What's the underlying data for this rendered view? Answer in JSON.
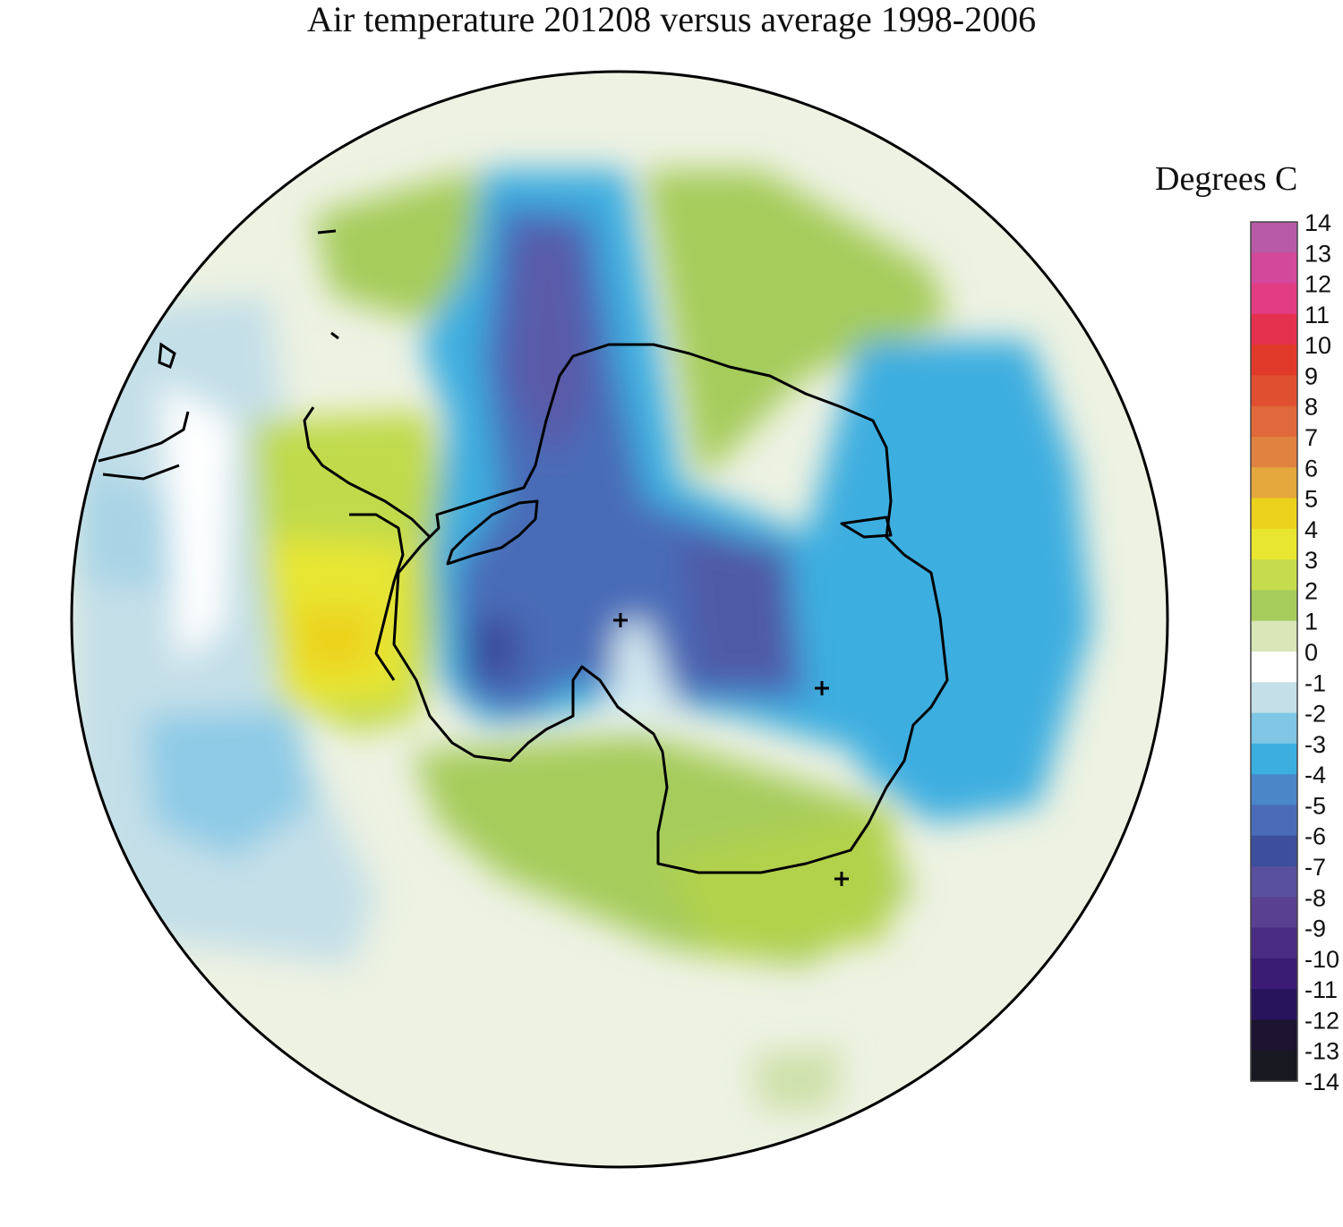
{
  "title": "Air temperature 201208 versus average 1998-2006",
  "legend": {
    "title": "Degrees C",
    "levels": [
      {
        "value": 14,
        "label": "14",
        "color": "#b85aa6"
      },
      {
        "value": 13,
        "label": "13",
        "color": "#d2489a"
      },
      {
        "value": 12,
        "label": "12",
        "color": "#e23c82"
      },
      {
        "value": 11,
        "label": "11",
        "color": "#e4304c"
      },
      {
        "value": 10,
        "label": "10",
        "color": "#e23a2a"
      },
      {
        "value": 9,
        "label": "9",
        "color": "#e05030"
      },
      {
        "value": 8,
        "label": "8",
        "color": "#e0683a"
      },
      {
        "value": 7,
        "label": "7",
        "color": "#e08240"
      },
      {
        "value": 6,
        "label": "6",
        "color": "#e4a83c"
      },
      {
        "value": 5,
        "label": "5",
        "color": "#ecd21c"
      },
      {
        "value": 4,
        "label": "4",
        "color": "#e8e630"
      },
      {
        "value": 3,
        "label": "3",
        "color": "#c6dc4c"
      },
      {
        "value": 2,
        "label": "2",
        "color": "#a6cc5c"
      },
      {
        "value": 1,
        "label": "1",
        "color": "#d8e6b8"
      },
      {
        "value": 0,
        "label": "0",
        "color": "#ffffff"
      },
      {
        "value": -1,
        "label": "-1",
        "color": "#c4dfe8"
      },
      {
        "value": -2,
        "label": "-2",
        "color": "#7ec6e4"
      },
      {
        "value": -3,
        "label": "-3",
        "color": "#3caee0"
      },
      {
        "value": -4,
        "label": "-4",
        "color": "#4a86c8"
      },
      {
        "value": -5,
        "label": "-5",
        "color": "#4a6cb8"
      },
      {
        "value": -6,
        "label": "-6",
        "color": "#3c4e9c"
      },
      {
        "value": -7,
        "label": "-7",
        "color": "#5a50a0"
      },
      {
        "value": -8,
        "label": "-8",
        "color": "#5a4090"
      },
      {
        "value": -9,
        "label": "-9",
        "color": "#4a2c84"
      },
      {
        "value": -10,
        "label": "-10",
        "color": "#3a1c74"
      },
      {
        "value": -11,
        "label": "-11",
        "color": "#28145a"
      },
      {
        "value": -12,
        "label": "-12",
        "color": "#1c1430"
      },
      {
        "value": -13,
        "label": "-13",
        "color": "#181820"
      },
      {
        "value": -14,
        "label": "-14",
        "color": "#101010"
      }
    ]
  },
  "map": {
    "projection": "south-polar-stereographic",
    "region": "Antarctica",
    "anomalies": [
      {
        "area": "central Antarctic plateau / South Pole",
        "approx_value": -4
      },
      {
        "area": "Amundsen-Bellingshausen Sea west of Antarctic Peninsula",
        "approx_value": 4
      },
      {
        "area": "Atlantic sector north of Weddell Sea",
        "approx_value": 2
      },
      {
        "area": "Indian Ocean sector",
        "approx_value": 2
      },
      {
        "area": "Pacific sector (Ross Sea)",
        "approx_value": 2
      },
      {
        "area": "East Antarctica coastal ocean",
        "approx_value": -2
      },
      {
        "area": "South Pacific near South America",
        "approx_value": -1
      }
    ]
  }
}
